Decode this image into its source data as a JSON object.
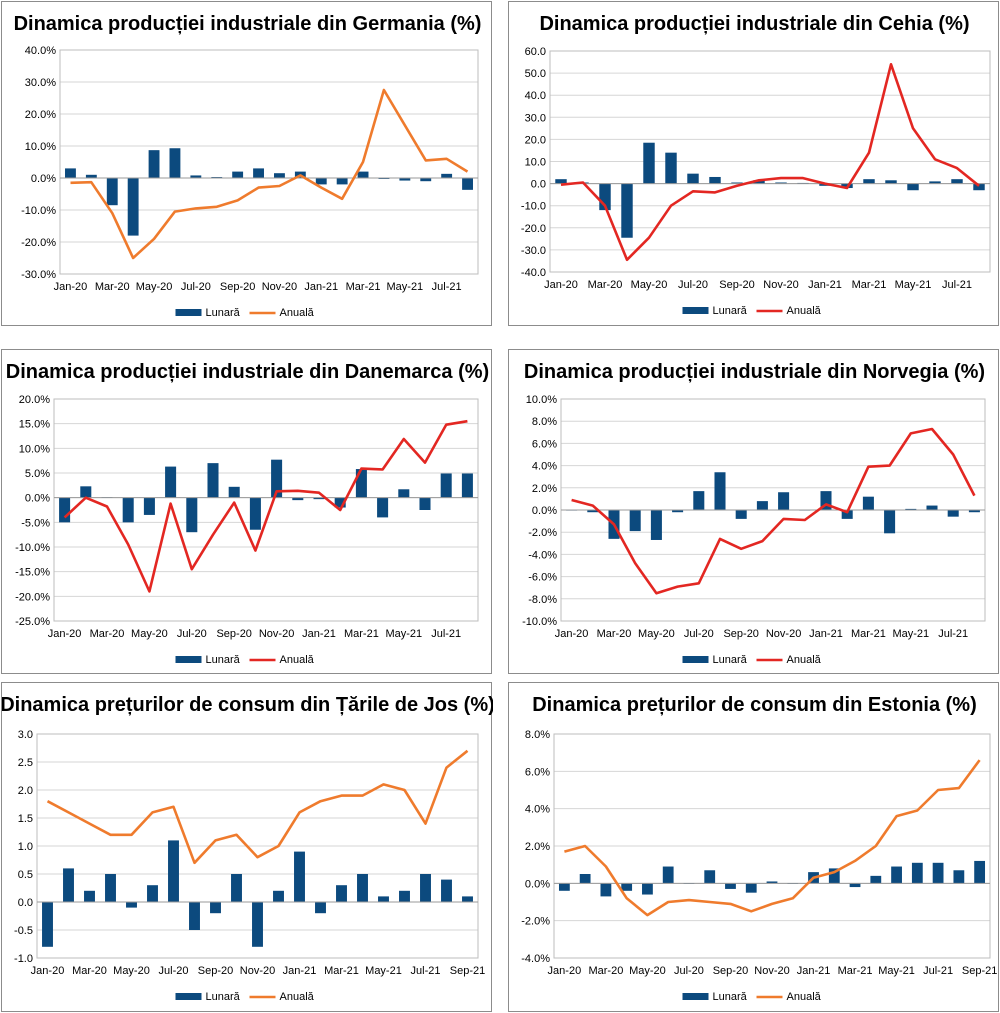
{
  "chart_data": [
    {
      "id": "germania",
      "type": "bar+line",
      "title": "Dinamica producției industriale din Germania (%)",
      "categories": [
        "Jan-20",
        "Feb-20",
        "Mar-20",
        "Apr-20",
        "May-20",
        "Jun-20",
        "Jul-20",
        "Aug-20",
        "Sep-20",
        "Oct-20",
        "Nov-20",
        "Dec-20",
        "Jan-21",
        "Feb-21",
        "Mar-21",
        "Apr-21",
        "May-21",
        "Jun-21",
        "Jul-21",
        "Aug-21"
      ],
      "xtick_labels": [
        "Jan-20",
        "Mar-20",
        "May-20",
        "Jul-20",
        "Sep-20",
        "Nov-20",
        "Jan-21",
        "Mar-21",
        "May-21",
        "Jul-21"
      ],
      "ylim": [
        -30,
        40
      ],
      "ystep": 10,
      "ydecimals": 1,
      "ysuffix": "%",
      "series": [
        {
          "name": "Lunară",
          "kind": "bar",
          "color": "#0c4a7e",
          "values": [
            3.0,
            1.0,
            -8.5,
            -18.0,
            8.7,
            9.3,
            0.8,
            0.3,
            2.0,
            3.0,
            1.5,
            2.0,
            -2.0,
            -2.0,
            2.0,
            -0.3,
            -0.8,
            -1.0,
            1.3,
            -3.7
          ]
        },
        {
          "name": "Anuală",
          "kind": "line",
          "color": "#ef7b2d",
          "values": [
            -1.5,
            -1.3,
            -11.0,
            -25.0,
            -19.0,
            -10.5,
            -9.5,
            -9.0,
            -7.0,
            -3.0,
            -2.5,
            0.8,
            -3.0,
            -6.5,
            5.0,
            27.5,
            16.5,
            5.5,
            6.0,
            2.0
          ]
        }
      ],
      "legend": [
        "Lunară",
        "Anuală"
      ]
    },
    {
      "id": "cehia",
      "type": "bar+line",
      "title": "Dinamica producției industriale din Cehia (%)",
      "categories": [
        "Jan-20",
        "Feb-20",
        "Mar-20",
        "Apr-20",
        "May-20",
        "Jun-20",
        "Jul-20",
        "Aug-20",
        "Sep-20",
        "Oct-20",
        "Nov-20",
        "Dec-20",
        "Jan-21",
        "Feb-21",
        "Mar-21",
        "Apr-21",
        "May-21",
        "Jun-21",
        "Jul-21",
        "Aug-21"
      ],
      "xtick_labels": [
        "Jan-20",
        "Mar-20",
        "May-20",
        "Jul-20",
        "Sep-20",
        "Nov-20",
        "Jan-21",
        "Mar-21",
        "May-21",
        "Jul-21"
      ],
      "ylim": [
        -40,
        60
      ],
      "ystep": 10,
      "ydecimals": 1,
      "ysuffix": "",
      "series": [
        {
          "name": "Lunară",
          "kind": "bar",
          "color": "#0c4a7e",
          "values": [
            2.0,
            0.5,
            -12.0,
            -24.5,
            18.5,
            14.0,
            4.5,
            3.0,
            0.5,
            1.5,
            0.5,
            0.3,
            -1.0,
            -2.0,
            2.0,
            1.5,
            -3.0,
            1.0,
            2.0,
            -3.0
          ]
        },
        {
          "name": "Anuală",
          "kind": "line",
          "color": "#e32722",
          "values": [
            -0.5,
            0.5,
            -10.0,
            -34.5,
            -24.5,
            -10.0,
            -3.5,
            -4.0,
            -1.0,
            1.5,
            2.5,
            2.5,
            0.0,
            -2.0,
            14.0,
            54.0,
            25.0,
            11.0,
            7.0,
            -1.0
          ]
        }
      ],
      "legend": [
        "Lunară",
        "Anuală"
      ]
    },
    {
      "id": "danemarca",
      "type": "bar+line",
      "title": "Dinamica producției industriale din Danemarca (%)",
      "categories": [
        "Jan-20",
        "Feb-20",
        "Mar-20",
        "Apr-20",
        "May-20",
        "Jun-20",
        "Jul-20",
        "Aug-20",
        "Sep-20",
        "Oct-20",
        "Nov-20",
        "Dec-20",
        "Jan-21",
        "Feb-21",
        "Mar-21",
        "Apr-21",
        "May-21",
        "Jun-21",
        "Jul-21",
        "Aug-21"
      ],
      "xtick_labels": [
        "Jan-20",
        "Mar-20",
        "May-20",
        "Jul-20",
        "Sep-20",
        "Nov-20",
        "Jan-21",
        "Mar-21",
        "May-21",
        "Jul-21"
      ],
      "ylim": [
        -25,
        20
      ],
      "ystep": 5,
      "ydecimals": 1,
      "ysuffix": "%",
      "series": [
        {
          "name": "Lunară",
          "kind": "bar",
          "color": "#0c4a7e",
          "values": [
            -5.0,
            2.3,
            0.1,
            -5.0,
            -3.5,
            6.3,
            -7.0,
            7.0,
            2.2,
            -6.5,
            7.7,
            -0.5,
            -0.3,
            -2.0,
            5.8,
            -4.0,
            1.7,
            -2.5,
            4.9,
            4.9
          ]
        },
        {
          "name": "Anuală",
          "kind": "line",
          "color": "#e32722",
          "values": [
            -4.0,
            0.0,
            -1.8,
            -9.5,
            -19.0,
            -1.2,
            -14.5,
            -7.5,
            -1.0,
            -10.7,
            1.3,
            1.4,
            1.0,
            -2.5,
            5.9,
            5.7,
            11.9,
            7.1,
            14.8,
            15.5
          ]
        }
      ],
      "legend": [
        "Lunară",
        "Anuală"
      ]
    },
    {
      "id": "norvegia",
      "type": "bar+line",
      "title": "Dinamica producției industriale din Norvegia (%)",
      "categories": [
        "Jan-20",
        "Feb-20",
        "Mar-20",
        "Apr-20",
        "May-20",
        "Jun-20",
        "Jul-20",
        "Aug-20",
        "Sep-20",
        "Oct-20",
        "Nov-20",
        "Dec-20",
        "Jan-21",
        "Feb-21",
        "Mar-21",
        "Apr-21",
        "May-21",
        "Jun-21",
        "Jul-21",
        "Aug-21"
      ],
      "xtick_labels": [
        "Jan-20",
        "Mar-20",
        "May-20",
        "Jul-20",
        "Sep-20",
        "Nov-20",
        "Jan-21",
        "Mar-21",
        "May-21",
        "Jul-21"
      ],
      "ylim": [
        -10,
        10
      ],
      "ystep": 2,
      "ydecimals": 1,
      "ysuffix": "%",
      "series": [
        {
          "name": "Lunară",
          "kind": "bar",
          "color": "#0c4a7e",
          "values": [
            0.0,
            -0.2,
            -2.6,
            -1.9,
            -2.7,
            -0.2,
            1.7,
            3.4,
            -0.8,
            0.8,
            1.6,
            0.0,
            1.7,
            -0.8,
            1.2,
            -2.1,
            0.1,
            0.4,
            -0.6,
            -0.2
          ]
        },
        {
          "name": "Anuală",
          "kind": "line",
          "color": "#e32722",
          "values": [
            0.9,
            0.4,
            -1.3,
            -4.8,
            -7.5,
            -6.9,
            -6.6,
            -2.6,
            -3.5,
            -2.8,
            -0.8,
            -0.9,
            0.5,
            -0.2,
            3.9,
            4.0,
            6.9,
            7.3,
            5.0,
            1.3
          ]
        }
      ],
      "legend": [
        "Lunară",
        "Anuală"
      ]
    },
    {
      "id": "tarile-de-jos",
      "type": "bar+line",
      "title": "Dinamica prețurilor de consum din Țările de Jos (%)",
      "categories": [
        "Jan-20",
        "Feb-20",
        "Mar-20",
        "Apr-20",
        "May-20",
        "Jun-20",
        "Jul-20",
        "Aug-20",
        "Sep-20",
        "Oct-20",
        "Nov-20",
        "Dec-20",
        "Jan-21",
        "Feb-21",
        "Mar-21",
        "Apr-21",
        "May-21",
        "Jun-21",
        "Jul-21",
        "Aug-21",
        "Sep-21"
      ],
      "xtick_labels": [
        "Jan-20",
        "Mar-20",
        "May-20",
        "Jul-20",
        "Sep-20",
        "Nov-20",
        "Jan-21",
        "Mar-21",
        "May-21",
        "Jul-21",
        "Sep-21"
      ],
      "ylim": [
        -1,
        3
      ],
      "ystep": 0.5,
      "ydecimals": 1,
      "ysuffix": "",
      "series": [
        {
          "name": "Lunară",
          "kind": "bar",
          "color": "#0c4a7e",
          "values": [
            -0.8,
            0.6,
            0.2,
            0.5,
            -0.1,
            0.3,
            1.1,
            -0.5,
            -0.2,
            0.5,
            -0.8,
            0.2,
            0.9,
            -0.2,
            0.3,
            0.5,
            0.1,
            0.2,
            0.5,
            0.4,
            0.1
          ]
        },
        {
          "name": "Anuală",
          "kind": "line",
          "color": "#ef7b2d",
          "values": [
            1.8,
            1.6,
            1.4,
            1.2,
            1.2,
            1.6,
            1.7,
            0.7,
            1.1,
            1.2,
            0.8,
            1.0,
            1.6,
            1.8,
            1.9,
            1.9,
            2.1,
            2.0,
            1.4,
            2.4,
            2.7
          ]
        }
      ],
      "legend": [
        "Lunară",
        "Anuală"
      ]
    },
    {
      "id": "estonia",
      "type": "bar+line",
      "title": "Dinamica prețurilor de consum din Estonia (%)",
      "categories": [
        "Jan-20",
        "Feb-20",
        "Mar-20",
        "Apr-20",
        "May-20",
        "Jun-20",
        "Jul-20",
        "Aug-20",
        "Sep-20",
        "Oct-20",
        "Nov-20",
        "Dec-20",
        "Jan-21",
        "Feb-21",
        "Mar-21",
        "Apr-21",
        "May-21",
        "Jun-21",
        "Jul-21",
        "Aug-21",
        "Sep-21"
      ],
      "xtick_labels": [
        "Jan-20",
        "Mar-20",
        "May-20",
        "Jul-20",
        "Sep-20",
        "Nov-20",
        "Jan-21",
        "Mar-21",
        "May-21",
        "Jul-21",
        "Sep-21"
      ],
      "ylim": [
        -4,
        8
      ],
      "ystep": 2,
      "ydecimals": 1,
      "ysuffix": "%",
      "series": [
        {
          "name": "Lunară",
          "kind": "bar",
          "color": "#0c4a7e",
          "values": [
            -0.4,
            0.5,
            -0.7,
            -0.4,
            -0.6,
            0.9,
            0.0,
            0.7,
            -0.3,
            -0.5,
            0.1,
            0.0,
            0.6,
            0.8,
            -0.2,
            0.4,
            0.9,
            1.1,
            1.1,
            0.7,
            1.2
          ]
        },
        {
          "name": "Anuală",
          "kind": "line",
          "color": "#ef7b2d",
          "values": [
            1.7,
            2.0,
            0.9,
            -0.8,
            -1.7,
            -1.0,
            -0.9,
            -1.0,
            -1.1,
            -1.5,
            -1.1,
            -0.8,
            0.3,
            0.6,
            1.2,
            2.0,
            3.6,
            3.9,
            5.0,
            5.1,
            6.6
          ]
        }
      ],
      "legend": [
        "Lunară",
        "Anuală"
      ]
    }
  ]
}
